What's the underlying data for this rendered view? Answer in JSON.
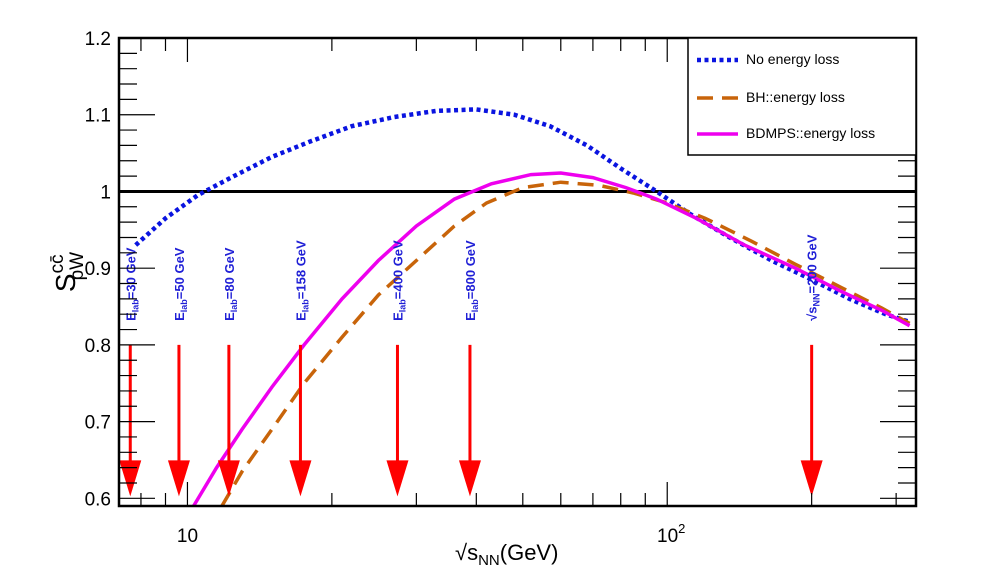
{
  "chart_data": {
    "type": "line",
    "x_scale": "log",
    "xlabel_main": "√s",
    "xlabel_sub": "NN",
    "xlabel_unit": "(GeV)",
    "ylabel_main": "S",
    "ylabel_sup": "cc̄",
    "ylabel_sub": "pW",
    "xlim": [
      7.2,
      330
    ],
    "ylim": [
      0.59,
      1.2
    ],
    "x_ticks": [
      {
        "value": 10,
        "label": "10",
        "exp": ""
      },
      {
        "value": 100,
        "label": "10",
        "exp": "2"
      }
    ],
    "y_ticks": [
      {
        "value": 0.6,
        "label": "0.6"
      },
      {
        "value": 0.7,
        "label": "0.7"
      },
      {
        "value": 0.8,
        "label": "0.8"
      },
      {
        "value": 0.9,
        "label": "0.9"
      },
      {
        "value": 1.0,
        "label": "1"
      },
      {
        "value": 1.1,
        "label": "1.1"
      },
      {
        "value": 1.2,
        "label": "1.2"
      }
    ],
    "reference_line": 1.0,
    "legend_position": "top-right",
    "series": [
      {
        "name": "No energy loss",
        "color": "#0a14e0",
        "style": "dotted",
        "points": [
          [
            7.8,
            0.93
          ],
          [
            9,
            0.965
          ],
          [
            10.5,
            0.995
          ],
          [
            12.5,
            1.02
          ],
          [
            15,
            1.045
          ],
          [
            18,
            1.065
          ],
          [
            22,
            1.085
          ],
          [
            27,
            1.097
          ],
          [
            33,
            1.105
          ],
          [
            40,
            1.107
          ],
          [
            48,
            1.1
          ],
          [
            57,
            1.085
          ],
          [
            68,
            1.06
          ],
          [
            80,
            1.03
          ],
          [
            95,
            1.0
          ],
          [
            112,
            0.97
          ],
          [
            135,
            0.94
          ],
          [
            165,
            0.91
          ],
          [
            200,
            0.885
          ],
          [
            240,
            0.86
          ],
          [
            285,
            0.84
          ],
          [
            320,
            0.83
          ]
        ]
      },
      {
        "name": "BH::energy loss",
        "color": "#c8640a",
        "style": "dashed",
        "points": [
          [
            11.8,
            0.59
          ],
          [
            13,
            0.635
          ],
          [
            15,
            0.69
          ],
          [
            17.5,
            0.75
          ],
          [
            21,
            0.81
          ],
          [
            25,
            0.865
          ],
          [
            30,
            0.91
          ],
          [
            36,
            0.955
          ],
          [
            42,
            0.985
          ],
          [
            50,
            1.005
          ],
          [
            60,
            1.012
          ],
          [
            72,
            1.008
          ],
          [
            85,
            0.998
          ],
          [
            100,
            0.985
          ],
          [
            120,
            0.965
          ],
          [
            150,
            0.935
          ],
          [
            185,
            0.905
          ],
          [
            230,
            0.875
          ],
          [
            280,
            0.848
          ],
          [
            320,
            0.828
          ]
        ]
      },
      {
        "name": "BDMPS::energy loss",
        "color": "#ee00ee",
        "style": "solid",
        "points": [
          [
            10.3,
            0.59
          ],
          [
            11.5,
            0.64
          ],
          [
            13,
            0.69
          ],
          [
            15,
            0.745
          ],
          [
            17.5,
            0.8
          ],
          [
            21,
            0.86
          ],
          [
            25,
            0.91
          ],
          [
            30,
            0.955
          ],
          [
            36,
            0.99
          ],
          [
            43,
            1.01
          ],
          [
            52,
            1.022
          ],
          [
            60,
            1.024
          ],
          [
            70,
            1.018
          ],
          [
            82,
            1.005
          ],
          [
            95,
            0.99
          ],
          [
            115,
            0.965
          ],
          [
            145,
            0.93
          ],
          [
            185,
            0.9
          ],
          [
            230,
            0.87
          ],
          [
            280,
            0.845
          ],
          [
            320,
            0.825
          ]
        ]
      }
    ],
    "arrows": [
      {
        "x": 7.6,
        "label_main": "E",
        "label_sub": "lab",
        "label_rest": "=30 GeV"
      },
      {
        "x": 9.6,
        "label_main": "E",
        "label_sub": "lab",
        "label_rest": "=50 GeV"
      },
      {
        "x": 12.2,
        "label_main": "E",
        "label_sub": "lab",
        "label_rest": "=80 GeV"
      },
      {
        "x": 17.2,
        "label_main": "E",
        "label_sub": "lab",
        "label_rest": "=158 GeV"
      },
      {
        "x": 27.4,
        "label_main": "E",
        "label_sub": "lab",
        "label_rest": "=400 GeV"
      },
      {
        "x": 38.8,
        "label_main": "E",
        "label_sub": "lab",
        "label_rest": "=800 GeV"
      },
      {
        "x": 200,
        "label_main": "√s",
        "label_sub": "NN",
        "label_rest": "=200 GeV"
      }
    ],
    "arrow_color": "#ff0000",
    "arrow_label_color": "#1f1fd6",
    "arrow_y_range": [
      0.6,
      0.8
    ]
  }
}
